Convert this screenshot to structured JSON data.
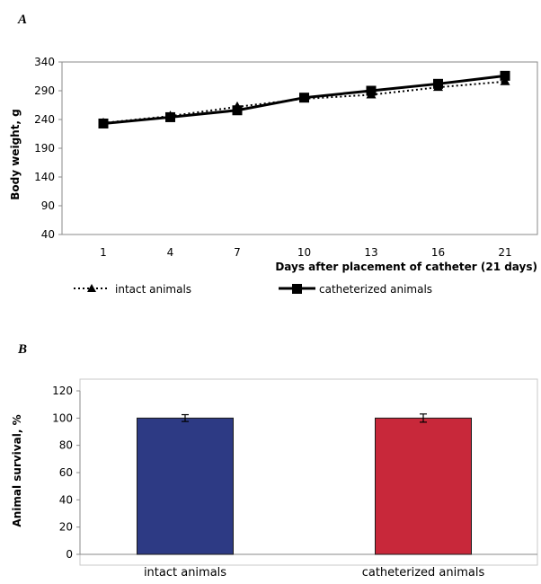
{
  "chart_data": [
    {
      "panel_label": "A",
      "type": "line",
      "x": [
        "1",
        "4",
        "7",
        "10",
        "13",
        "16",
        "21"
      ],
      "xlabel": "Days after placement of catheter (21 days)",
      "ylabel": "Body weight, g",
      "ylim": [
        40,
        340
      ],
      "yticks": [
        "40",
        "90",
        "140",
        "190",
        "240",
        "290",
        "340"
      ],
      "grid": false,
      "legend_position": "bottom",
      "series": [
        {
          "name": "intact animals",
          "values": [
            234,
            246,
            262,
            276,
            283,
            296,
            306
          ],
          "color": "#000000",
          "line_style": "dotted",
          "marker": "triangle"
        },
        {
          "name": "catheterized animals",
          "values": [
            233,
            244,
            256,
            278,
            290,
            302,
            316
          ],
          "color": "#000000",
          "line_style": "solid",
          "marker": "square"
        }
      ]
    },
    {
      "panel_label": "B",
      "type": "bar",
      "categories": [
        "intact animals",
        "catheterized animals"
      ],
      "values": [
        100,
        100
      ],
      "errors": [
        2.5,
        3
      ],
      "colors": [
        "#2d3a84",
        "#c8283a"
      ],
      "ylabel": "Animal survival, %",
      "ylim": [
        0,
        120
      ],
      "yticks": [
        "0",
        "20",
        "40",
        "60",
        "80",
        "100",
        "120"
      ],
      "grid": false
    }
  ]
}
